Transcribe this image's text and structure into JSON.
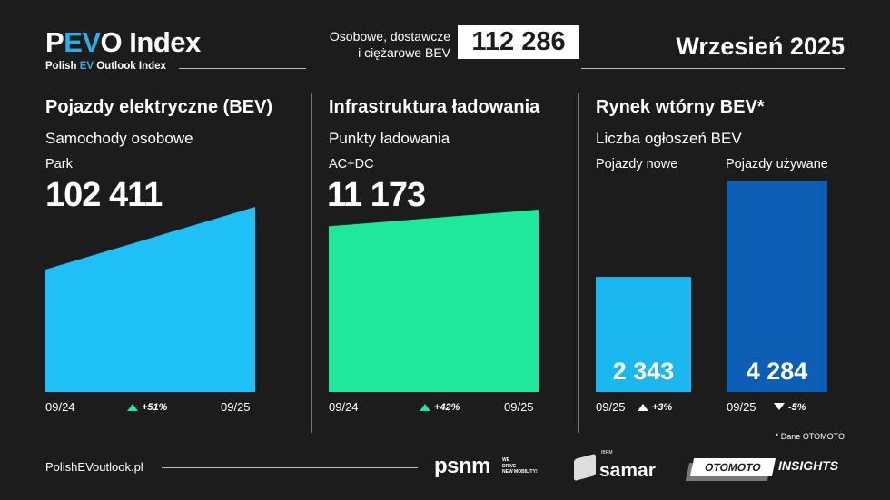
{
  "header": {
    "logo_main": "PEVO Index",
    "logo_sub": "Polish EV Outlook Index",
    "total_label_line1": "Osobowe, dostawcze",
    "total_label_line2": "i ciężarowe BEV",
    "total_value": "112 286",
    "month": "Wrzesień 2025"
  },
  "sections": [
    {
      "title": "Pojazdy elektryczne (BEV)",
      "subtitle": "Samochody osobowe",
      "label": "Park",
      "value": "102 411",
      "start": "09/24",
      "end": "09/25",
      "change": "+51%"
    },
    {
      "title": "Infrastruktura ładowania",
      "subtitle": "Punkty ładowania",
      "label": "AC+DC",
      "value": "11 173",
      "start": "09/24",
      "end": "09/25",
      "change": "+42%"
    },
    {
      "title": "Rynek wtórny BEV*",
      "subtitle": "Liczba ogłoszeń BEV",
      "bar1_label": "Pojazdy nowe",
      "bar2_label": "Pojazdy używane",
      "bar1_value": "2 343",
      "bar2_value": "4 284",
      "bar1_date": "09/25",
      "bar2_date": "09/25",
      "bar1_change": "+3%",
      "bar2_change": "-5%",
      "footnote": "* Dane OTOMOTO"
    }
  ],
  "footer": {
    "website": "PolishEVoutlook.pl",
    "logos": [
      "psnm",
      "WE DRIVE NEW MOBILITY!",
      "IBRM",
      "samar",
      "OTOMOTO",
      "INSIGHTS"
    ]
  },
  "colors": {
    "background": "#1c1c1c",
    "bev": "#1ec0f5",
    "infra": "#1de89b",
    "new": "#1ab8ee",
    "used": "#0d5fb5",
    "up": "#1de89b"
  },
  "chart_data": [
    {
      "type": "area",
      "x": [
        "09/24",
        "09/25"
      ],
      "values": [
        67800,
        102411
      ],
      "ylim": [
        0,
        102411
      ],
      "annotation": "+51%"
    },
    {
      "type": "area",
      "x": [
        "09/24",
        "09/25"
      ],
      "values": [
        7870,
        11173
      ],
      "ylim": [
        -25000,
        11173
      ],
      "annotation": "+42%"
    },
    {
      "type": "bar",
      "categories": [
        "Pojazdy nowe",
        "Pojazdy używane"
      ],
      "values": [
        2343,
        4284
      ],
      "ylim": [
        0,
        4284
      ]
    }
  ]
}
